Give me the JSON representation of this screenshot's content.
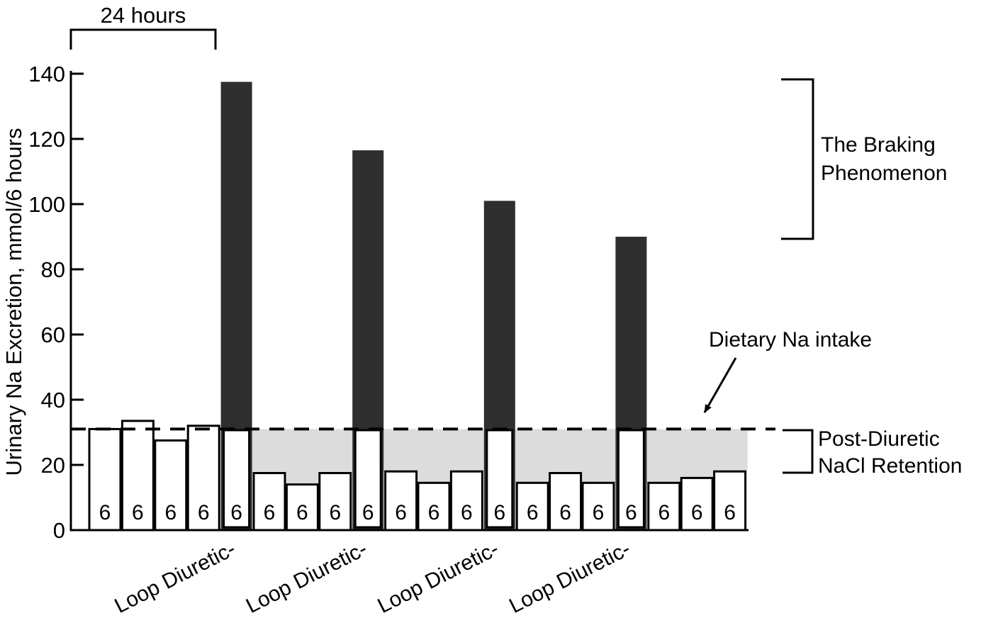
{
  "figure": {
    "background": "#ffffff",
    "description": "Bar chart of urinary sodium excretion per 6-hour interval across repeated loop diuretic doses"
  },
  "colors": {
    "black_bar": "#2e2e2e",
    "white_bar": "#ffffff",
    "gray_retention_fill": "#dcdcdc",
    "line": "#000000"
  },
  "annotations": {
    "duration_bracket_label": "24 hours",
    "braking_label_line1": "The Braking",
    "braking_label_line2": "Phenomenon",
    "dietary_label": "Dietary Na intake",
    "retention_label_line1": "Post-Diuretic",
    "retention_label_line2": "NaCl Retention"
  },
  "chart_data": {
    "type": "bar",
    "title": "",
    "xlabel": "",
    "ylabel": "Urinary Na Excretion, mmol/6 hours",
    "ylim": [
      0,
      140
    ],
    "yticks": [
      0,
      20,
      40,
      60,
      80,
      100,
      120,
      140
    ],
    "grid": false,
    "legend": "none",
    "dietary_na_intake_level": 31,
    "interval_hours_label": "6",
    "bars": [
      {
        "value": 31,
        "color": "white",
        "label": "6"
      },
      {
        "value": 33.5,
        "color": "white",
        "label": "6"
      },
      {
        "value": 27.5,
        "color": "white",
        "label": "6"
      },
      {
        "value": 32,
        "color": "white",
        "label": "6"
      },
      {
        "value": 137.5,
        "color": "black",
        "label": "6"
      },
      {
        "value": 17.5,
        "color": "white",
        "label": "6"
      },
      {
        "value": 14,
        "color": "white",
        "label": "6"
      },
      {
        "value": 17.5,
        "color": "white",
        "label": "6"
      },
      {
        "value": 116.5,
        "color": "black",
        "label": "6"
      },
      {
        "value": 18,
        "color": "white",
        "label": "6"
      },
      {
        "value": 14.5,
        "color": "white",
        "label": "6"
      },
      {
        "value": 18,
        "color": "white",
        "label": "6"
      },
      {
        "value": 101,
        "color": "black",
        "label": "6"
      },
      {
        "value": 14.5,
        "color": "white",
        "label": "6"
      },
      {
        "value": 17.5,
        "color": "white",
        "label": "6"
      },
      {
        "value": 14.5,
        "color": "white",
        "label": "6"
      },
      {
        "value": 90,
        "color": "black",
        "label": "6"
      },
      {
        "value": 14.5,
        "color": "white",
        "label": "6"
      },
      {
        "value": 16,
        "color": "white",
        "label": "6"
      },
      {
        "value": 18,
        "color": "white",
        "label": "6"
      }
    ],
    "group_labels": [
      {
        "label": "Loop Diuretic-",
        "anchor_bar_index": 4
      },
      {
        "label": "Loop Diuretic-",
        "anchor_bar_index": 8
      },
      {
        "label": "Loop Diuretic-",
        "anchor_bar_index": 12
      },
      {
        "label": "Loop Diuretic-",
        "anchor_bar_index": 16
      }
    ]
  }
}
